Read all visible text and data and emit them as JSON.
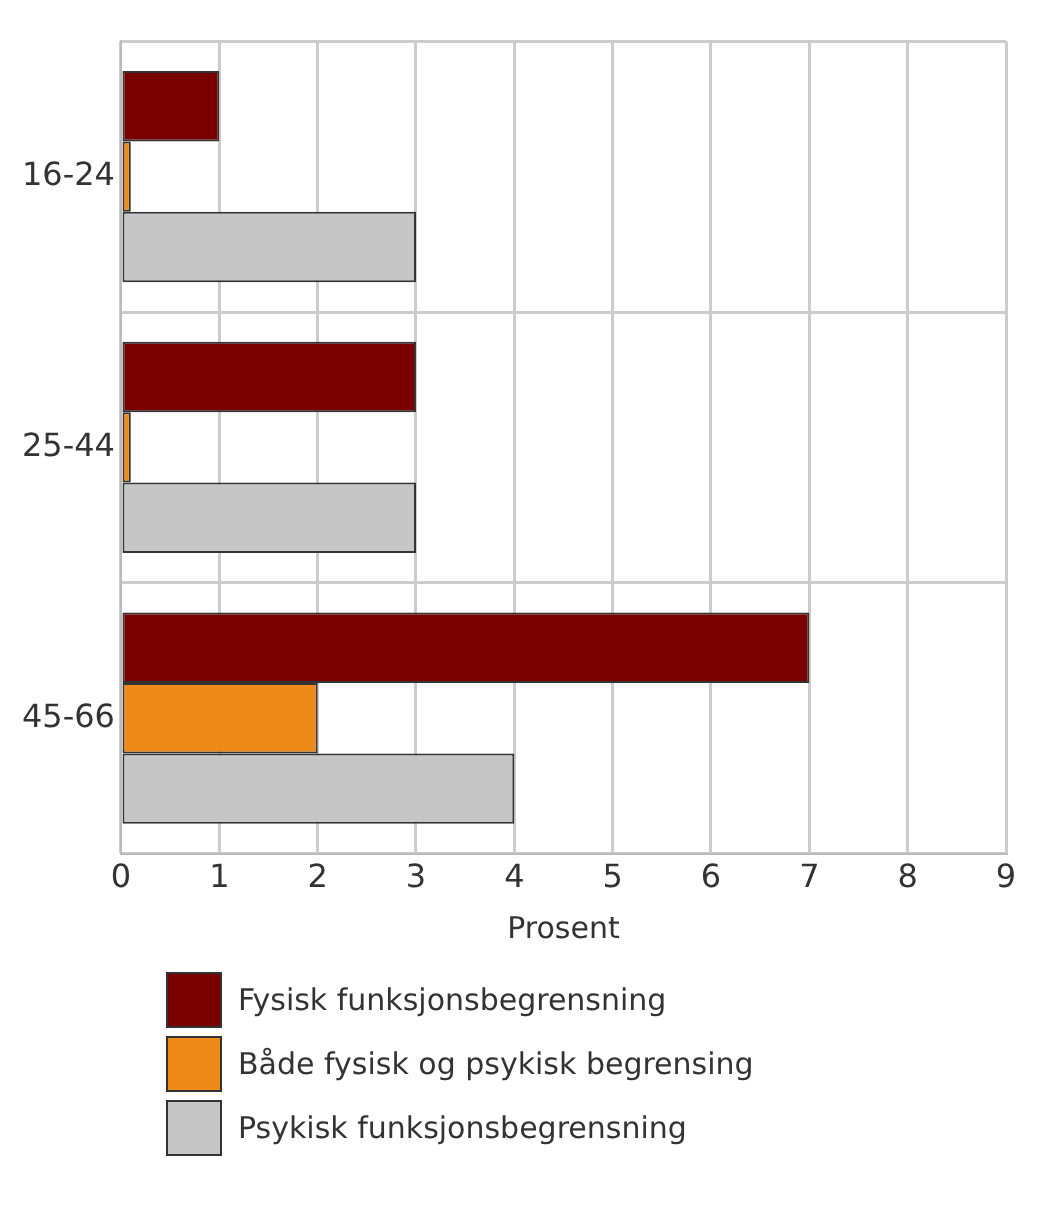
{
  "chart_data": {
    "type": "bar",
    "orientation": "horizontal",
    "xlabel": "Prosent",
    "categories": [
      "16-24",
      "25-44",
      "45-66"
    ],
    "series": [
      {
        "name": "Fysisk funksjonsbegrensning",
        "color": "#7a0000",
        "values": [
          1,
          3,
          7
        ]
      },
      {
        "name": "Både fysisk og psykisk begrensing",
        "color": "#ee8a18",
        "values": [
          0.1,
          0.1,
          2
        ]
      },
      {
        "name": "Psykisk funksjonsbegrensning",
        "color": "#c6c6c6",
        "values": [
          3,
          3,
          4
        ]
      }
    ],
    "xlim": [
      0,
      9
    ],
    "xticks": [
      0,
      1,
      2,
      3,
      4,
      5,
      6,
      7,
      8,
      9
    ],
    "grid": true,
    "legend": "bottom"
  }
}
